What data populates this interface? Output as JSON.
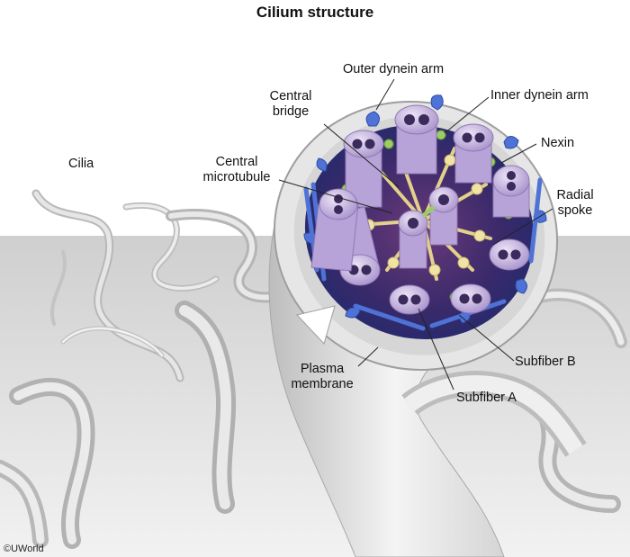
{
  "title": "Cilium structure",
  "labels": {
    "cilia": "Cilia",
    "outer_dynein_arm": "Outer dynein arm",
    "central_bridge": "Central\nbridge",
    "inner_dynein_arm": "Inner dynein arm",
    "nexin": "Nexin",
    "central_microtubule": "Central\nmicrotubule",
    "radial_spoke": "Radial\nspoke",
    "plasma_membrane": "Plasma\nmembrane",
    "subfiber_b": "Subfiber B",
    "subfiber_a": "Subfiber A"
  },
  "copyright": "©UWorld",
  "colors": {
    "microtubule": "#c6b4de",
    "microtubule_dark": "#8f78b4",
    "dynein": "#4a6fd4",
    "radial_spoke": "#e8d89a",
    "nexin": "#8bc34a",
    "membrane": "#e4e4e4",
    "core": "#1e2a6e"
  }
}
